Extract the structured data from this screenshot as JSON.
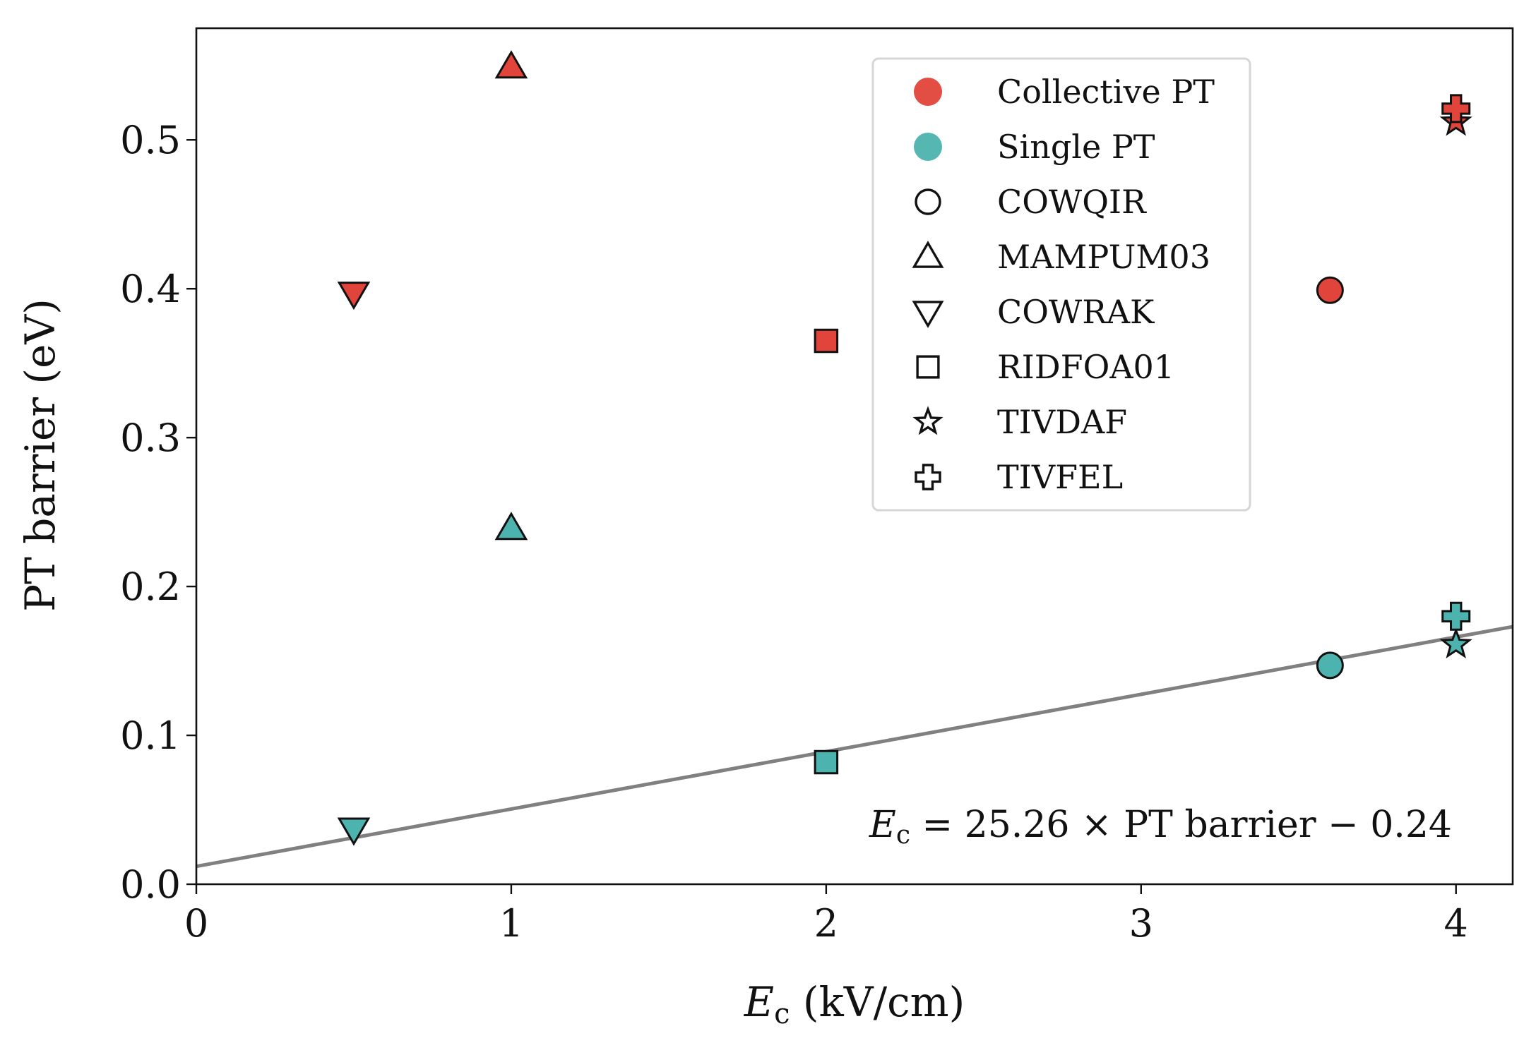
{
  "chart_data": {
    "type": "scatter",
    "title": "",
    "xlabel_main": "E",
    "xlabel_sub": "c",
    "xlabel_unit": " (kV/cm)",
    "ylabel": "PT barrier (eV)",
    "xlim": [
      0,
      4.18
    ],
    "ylim": [
      0,
      0.575
    ],
    "xticks": [
      0,
      1,
      2,
      3,
      4
    ],
    "xtick_labels": [
      "0",
      "1",
      "2",
      "3",
      "4"
    ],
    "yticks": [
      0.0,
      0.1,
      0.2,
      0.3,
      0.4,
      0.5
    ],
    "ytick_labels": [
      "0.0",
      "0.1",
      "0.2",
      "0.3",
      "0.4",
      "0.5"
    ],
    "grid": false,
    "colors": {
      "collective": "#e0443a",
      "single": "#4db3ae",
      "fit": "#808080",
      "edge": "#111111"
    },
    "series": [
      {
        "name": "Collective PT",
        "kind": "collective",
        "points": [
          {
            "compound": "COWQIR",
            "marker": "circle",
            "x": 3.6,
            "y": 0.399
          },
          {
            "compound": "MAMPUM03",
            "marker": "triangle-up",
            "x": 1.0,
            "y": 0.549
          },
          {
            "compound": "COWRAK",
            "marker": "triangle-down",
            "x": 0.5,
            "y": 0.397
          },
          {
            "compound": "RIDFOA01",
            "marker": "square",
            "x": 2.0,
            "y": 0.365
          },
          {
            "compound": "TIVDAF",
            "marker": "star",
            "x": 4.0,
            "y": 0.512
          },
          {
            "compound": "TIVFEL",
            "marker": "plus",
            "x": 4.0,
            "y": 0.521
          }
        ]
      },
      {
        "name": "Single PT",
        "kind": "single",
        "points": [
          {
            "compound": "COWQIR",
            "marker": "circle",
            "x": 3.6,
            "y": 0.147
          },
          {
            "compound": "MAMPUM03",
            "marker": "triangle-up",
            "x": 1.0,
            "y": 0.239
          },
          {
            "compound": "COWRAK",
            "marker": "triangle-down",
            "x": 0.5,
            "y": 0.037
          },
          {
            "compound": "RIDFOA01",
            "marker": "square",
            "x": 2.0,
            "y": 0.082
          },
          {
            "compound": "TIVDAF",
            "marker": "star",
            "x": 4.0,
            "y": 0.161
          },
          {
            "compound": "TIVFEL",
            "marker": "plus",
            "x": 4.0,
            "y": 0.18
          }
        ]
      }
    ],
    "fit_line": {
      "x": [
        0,
        4.18
      ],
      "y": [
        0.012,
        0.173
      ]
    },
    "legend": {
      "placement": "top-right",
      "entries": [
        {
          "label": "Collective PT",
          "marker": "circle-filled",
          "color": "#e0443a"
        },
        {
          "label": "Single PT",
          "marker": "circle-filled",
          "color": "#4db3ae"
        },
        {
          "label": "COWQIR",
          "marker": "circle"
        },
        {
          "label": "MAMPUM03",
          "marker": "triangle-up"
        },
        {
          "label": "COWRAK",
          "marker": "triangle-down"
        },
        {
          "label": "RIDFOA01",
          "marker": "square"
        },
        {
          "label": "TIVDAF",
          "marker": "star"
        },
        {
          "label": "TIVFEL",
          "marker": "plus"
        }
      ]
    },
    "annotation": {
      "sym": "E",
      "sub": "c",
      "rest": " = 25.26 × PT barrier − 0.24"
    }
  }
}
